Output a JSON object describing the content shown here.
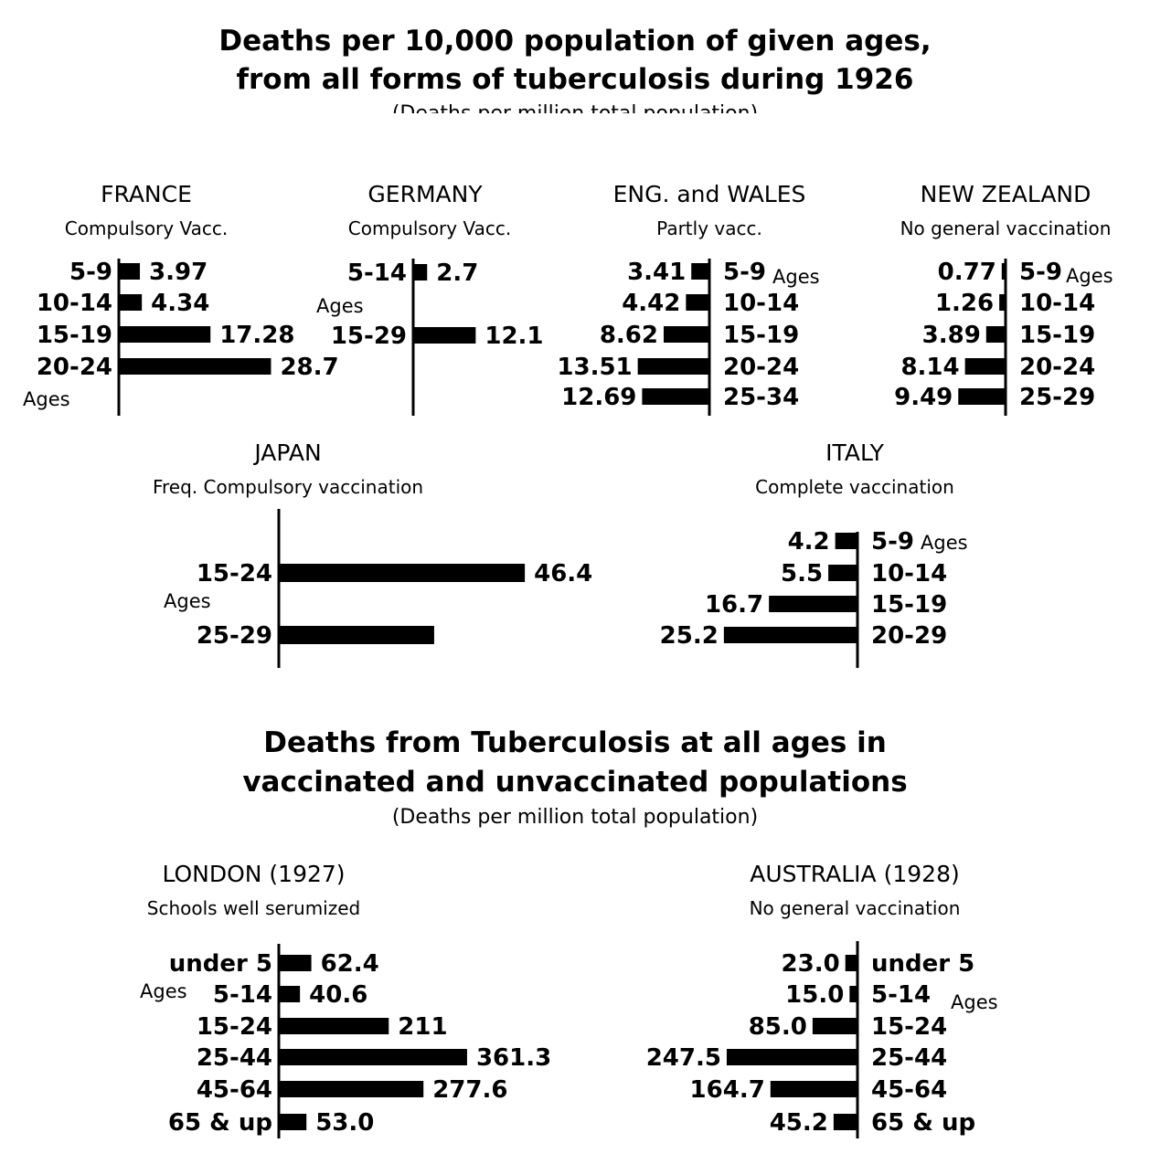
{
  "header": {
    "title_line1": "Deaths per 10,000 population of given ages,",
    "title_line2": "from all forms of tuberculosis during 1926",
    "subtitle_cut": "(Deaths per million total population)"
  },
  "second_header": {
    "title_line1": "Deaths from Tuberculosis at all ages in",
    "title_line2": "vaccinated and unvaccinated populations",
    "subtitle": "(Deaths per million total population)"
  },
  "axis_word": "Ages",
  "colors": {
    "bar": "#000000",
    "background": "#ffffff"
  },
  "chart_data": [
    {
      "type": "bar",
      "id": "france",
      "title": "FRANCE",
      "subtitle": "Compulsory Vacc.",
      "categories": [
        "5-9",
        "10-14",
        "15-19",
        "20-24"
      ],
      "values": [
        3.97,
        4.34,
        17.28,
        28.7
      ],
      "value_labels": [
        "3.97",
        "4.34",
        "17.28",
        "28.7"
      ],
      "orientation": "horizontal-right"
    },
    {
      "type": "bar",
      "id": "germany",
      "title": "GERMANY",
      "subtitle": "Compulsory Vacc.",
      "categories": [
        "5-14",
        "15-29"
      ],
      "values": [
        2.7,
        12.1
      ],
      "value_labels": [
        "2.7",
        "12.1"
      ],
      "orientation": "horizontal-right"
    },
    {
      "type": "bar",
      "id": "england",
      "title": "ENG. and WALES",
      "subtitle": "Partly vacc.",
      "categories": [
        "5-9",
        "10-14",
        "15-19",
        "20-24",
        "25-34"
      ],
      "values": [
        3.41,
        4.42,
        8.62,
        13.51,
        12.69
      ],
      "value_labels": [
        "3.41",
        "4.42",
        "8.62",
        "13.51",
        "12.69"
      ],
      "orientation": "horizontal-left"
    },
    {
      "type": "bar",
      "id": "newzealand",
      "title": "NEW ZEALAND",
      "subtitle": "No general vaccination",
      "categories": [
        "5-9",
        "10-14",
        "15-19",
        "20-24",
        "25-29"
      ],
      "values": [
        0.77,
        1.26,
        3.89,
        8.14,
        9.49
      ],
      "value_labels": [
        "0.77",
        "1.26",
        "3.89",
        "8.14",
        "9.49"
      ],
      "orientation": "horizontal-left"
    },
    {
      "type": "bar",
      "id": "japan",
      "title": "JAPAN",
      "subtitle": "Freq. Compulsory vaccination",
      "categories": [
        "15-24",
        "25-29"
      ],
      "values": [
        46.4,
        29.3
      ],
      "value_labels": [
        "46.4",
        ""
      ],
      "orientation": "horizontal-right"
    },
    {
      "type": "bar",
      "id": "italy",
      "title": "ITALY",
      "subtitle": "Complete vaccination",
      "categories": [
        "5-9",
        "10-14",
        "15-19",
        "20-29"
      ],
      "values": [
        4.2,
        5.5,
        16.7,
        25.2
      ],
      "value_labels": [
        "4.2",
        "5.5",
        "16.7",
        "25.2"
      ],
      "orientation": "horizontal-left"
    },
    {
      "type": "bar",
      "id": "london",
      "title": "LONDON (1927)",
      "subtitle": "Schools well serumized",
      "categories": [
        "under 5",
        "5-14",
        "15-24",
        "25-44",
        "45-64",
        "65 & up"
      ],
      "values": [
        62.4,
        40.6,
        211,
        361.3,
        277.6,
        53.0
      ],
      "value_labels": [
        "62.4",
        "40.6",
        "211",
        "361.3",
        "277.6",
        "53.0"
      ],
      "orientation": "horizontal-right"
    },
    {
      "type": "bar",
      "id": "australia",
      "title": "AUSTRALIA (1928)",
      "subtitle": "No general vaccination",
      "categories": [
        "under 5",
        "5-14",
        "15-24",
        "25-44",
        "45-64",
        "65 & up"
      ],
      "values": [
        23.0,
        15.0,
        85.0,
        247.5,
        164.7,
        45.2
      ],
      "value_labels": [
        "23.0",
        "15.0",
        "85.0",
        "247.5",
        "164.7",
        "45.2"
      ],
      "orientation": "horizontal-left"
    }
  ]
}
